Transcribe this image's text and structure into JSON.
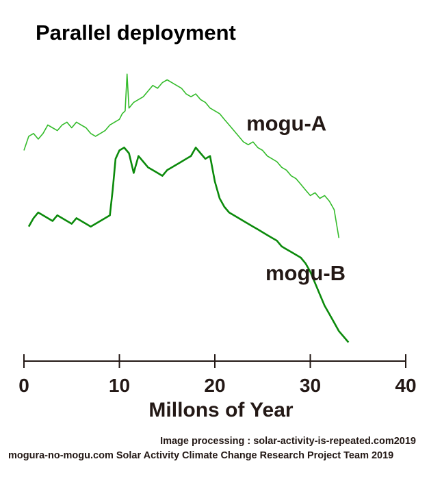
{
  "title": "Parallel deployment",
  "credits": {
    "line1": "Image processing : solar-activity-is-repeated.com2019",
    "line2": "mogura-no-mogu.com Solar Activity Climate Change Research Project Team 2019"
  },
  "chart_data": {
    "type": "line",
    "title": "Parallel deployment",
    "xlabel": "Millons of Year",
    "ylabel": "",
    "xlim": [
      0,
      40
    ],
    "ylim": [
      0,
      100
    ],
    "y_axis_visible": false,
    "grid": false,
    "xticks": [
      0,
      10,
      20,
      30,
      40
    ],
    "xtick_labels": [
      "0",
      "10",
      "20",
      "30",
      "40"
    ],
    "series": [
      {
        "name": "mogu-A",
        "color": "#33bb2a",
        "x": [
          0,
          0.5,
          1,
          1.5,
          2,
          2.5,
          3,
          3.5,
          4,
          4.5,
          5,
          5.5,
          6,
          6.5,
          7,
          7.5,
          8,
          8.5,
          9,
          9.5,
          10,
          10.3,
          10.6,
          10.8,
          11,
          11.5,
          12,
          12.5,
          13,
          13.5,
          14,
          14.5,
          15,
          15.5,
          16,
          16.5,
          17,
          17.5,
          18,
          18.5,
          19,
          19.5,
          20,
          20.5,
          21,
          21.5,
          22,
          22.5,
          23,
          23.5,
          24,
          24.5,
          25,
          25.5,
          26,
          26.5,
          27,
          27.5,
          28,
          28.5,
          29,
          29.5,
          30,
          30.5,
          31,
          31.5,
          32,
          32.5,
          33
        ],
        "values": [
          71,
          76,
          77,
          75,
          77,
          80,
          79,
          78,
          80,
          81,
          79,
          81,
          80,
          79,
          77,
          76,
          77,
          78,
          80,
          81,
          82,
          84,
          85,
          98,
          86,
          88,
          89,
          90,
          92,
          94,
          93,
          95,
          96,
          95,
          94,
          93,
          91,
          90,
          91,
          89,
          88,
          86,
          85,
          84,
          82,
          80,
          78,
          76,
          74,
          73,
          74,
          72,
          71,
          69,
          68,
          67,
          65,
          64,
          62,
          61,
          59,
          57,
          55,
          56,
          54,
          55,
          53,
          50,
          40
        ]
      },
      {
        "name": "mogu-B",
        "color": "#0b8a0b",
        "x": [
          0.5,
          1,
          1.5,
          2,
          2.5,
          3,
          3.5,
          4,
          4.5,
          5,
          5.5,
          6,
          6.5,
          7,
          7.5,
          8,
          8.5,
          9,
          9.3,
          9.6,
          10,
          10.5,
          11,
          11.5,
          12,
          12.5,
          13,
          13.5,
          14,
          14.5,
          15,
          15.5,
          16,
          16.5,
          17,
          17.5,
          18,
          18.5,
          19,
          19.5,
          20,
          20.5,
          21,
          21.5,
          22,
          22.5,
          23,
          23.5,
          24,
          24.5,
          25,
          25.5,
          26,
          26.5,
          27,
          27.5,
          28,
          28.5,
          29,
          29.5,
          30,
          30.5,
          31,
          31.5,
          32,
          32.5,
          33,
          33.5,
          34
        ],
        "values": [
          44,
          47,
          49,
          48,
          47,
          46,
          48,
          47,
          46,
          45,
          47,
          46,
          45,
          44,
          45,
          46,
          47,
          48,
          57,
          68,
          71,
          72,
          70,
          63,
          69,
          67,
          65,
          64,
          63,
          62,
          64,
          65,
          66,
          67,
          68,
          69,
          72,
          70,
          68,
          69,
          60,
          54,
          51,
          49,
          48,
          47,
          46,
          45,
          44,
          43,
          42,
          41,
          40,
          39,
          37,
          36,
          35,
          34,
          33,
          31,
          28,
          24,
          20,
          16,
          13,
          10,
          7,
          5,
          3
        ]
      }
    ],
    "annotations": [
      {
        "text": "mogu-A",
        "x": 27.5,
        "y": 78
      },
      {
        "text": "mogu-B",
        "x": 29.5,
        "y": 25
      }
    ]
  }
}
